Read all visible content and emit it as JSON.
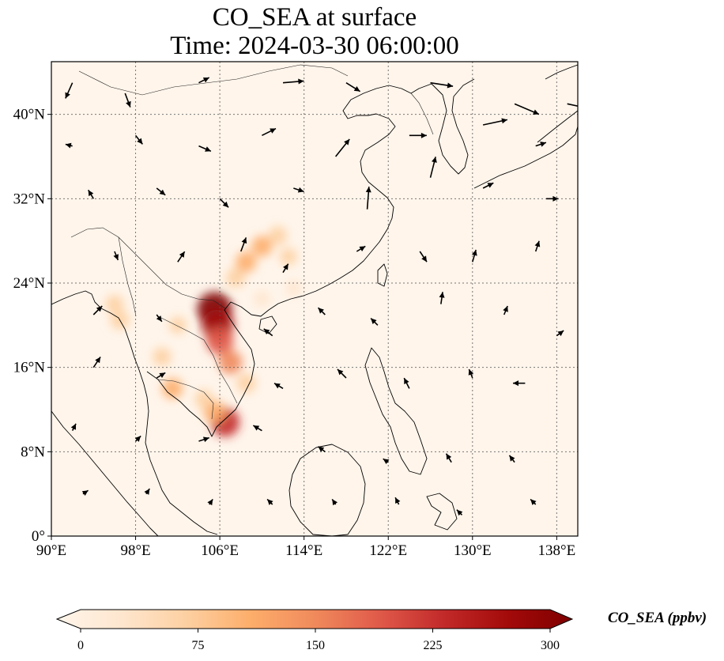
{
  "title": {
    "line1": "CO_SEA at surface",
    "line2": "Time: 2024-03-30 06:00:00"
  },
  "map": {
    "extent": {
      "lon": [
        90,
        140
      ],
      "lat": [
        0,
        45
      ]
    },
    "x_ticks": [
      {
        "lon": 90,
        "label": "90°E"
      },
      {
        "lon": 98,
        "label": "98°E"
      },
      {
        "lon": 106,
        "label": "106°E"
      },
      {
        "lon": 114,
        "label": "114°E"
      },
      {
        "lon": 122,
        "label": "122°E"
      },
      {
        "lon": 130,
        "label": "130°E"
      },
      {
        "lon": 138,
        "label": "138°E"
      }
    ],
    "y_ticks": [
      {
        "lat": 0,
        "label": "0°"
      },
      {
        "lat": 8,
        "label": "8°N"
      },
      {
        "lat": 16,
        "label": "16°N"
      },
      {
        "lat": 24,
        "label": "24°N"
      },
      {
        "lat": 32,
        "label": "32°N"
      },
      {
        "lat": 40,
        "label": "40°N"
      }
    ],
    "background_color": "#fff5eb",
    "hotspots": [
      {
        "lon": 105.5,
        "lat": 21.5,
        "value": 300
      },
      {
        "lon": 105.8,
        "lat": 20.0,
        "value": 260
      },
      {
        "lon": 106.0,
        "lat": 18.5,
        "value": 200
      },
      {
        "lon": 107.0,
        "lat": 16.5,
        "value": 150
      },
      {
        "lon": 108.5,
        "lat": 14.5,
        "value": 90
      },
      {
        "lon": 106.5,
        "lat": 10.8,
        "value": 220
      },
      {
        "lon": 105.5,
        "lat": 11.8,
        "value": 130
      },
      {
        "lon": 104.5,
        "lat": 13.0,
        "value": 80
      },
      {
        "lon": 101.5,
        "lat": 14.0,
        "value": 110
      },
      {
        "lon": 100.5,
        "lat": 17.0,
        "value": 80
      },
      {
        "lon": 96.5,
        "lat": 20.5,
        "value": 85
      },
      {
        "lon": 96.0,
        "lat": 22.0,
        "value": 75
      },
      {
        "lon": 107.5,
        "lat": 24.5,
        "value": 90
      },
      {
        "lon": 108.5,
        "lat": 26.0,
        "value": 110
      },
      {
        "lon": 110.0,
        "lat": 27.5,
        "value": 110
      },
      {
        "lon": 111.5,
        "lat": 28.5,
        "value": 80
      },
      {
        "lon": 112.5,
        "lat": 26.5,
        "value": 60
      },
      {
        "lon": 110.0,
        "lat": 22.5,
        "value": 55
      },
      {
        "lon": 113.0,
        "lat": 23.5,
        "value": 50
      },
      {
        "lon": 102.0,
        "lat": 20.0,
        "value": 60
      }
    ],
    "wind_vectors": [
      {
        "lon": 92,
        "lat": 43,
        "u": -0.4,
        "v": -0.9
      },
      {
        "lon": 97,
        "lat": 42,
        "u": 0.3,
        "v": -0.8
      },
      {
        "lon": 104,
        "lat": 43,
        "u": 0.6,
        "v": 0.3
      },
      {
        "lon": 112,
        "lat": 43,
        "u": 1.2,
        "v": 0.1
      },
      {
        "lon": 118,
        "lat": 43,
        "u": 0.8,
        "v": -0.5
      },
      {
        "lon": 126,
        "lat": 43,
        "u": 1.3,
        "v": -0.2
      },
      {
        "lon": 134,
        "lat": 41,
        "u": 1.4,
        "v": -0.6
      },
      {
        "lon": 139,
        "lat": 41,
        "u": 1.4,
        "v": -0.3
      },
      {
        "lon": 92,
        "lat": 37,
        "u": -0.4,
        "v": 0.1
      },
      {
        "lon": 98,
        "lat": 38,
        "u": 0.4,
        "v": -0.5
      },
      {
        "lon": 104,
        "lat": 37,
        "u": 0.7,
        "v": -0.3
      },
      {
        "lon": 110,
        "lat": 38,
        "u": 0.8,
        "v": 0.4
      },
      {
        "lon": 117,
        "lat": 36,
        "u": 0.8,
        "v": 1.0
      },
      {
        "lon": 124,
        "lat": 38,
        "u": 1.0,
        "v": 0.0
      },
      {
        "lon": 131,
        "lat": 39,
        "u": 1.4,
        "v": 0.3
      },
      {
        "lon": 136,
        "lat": 37,
        "u": 0.6,
        "v": 0.2
      },
      {
        "lon": 94,
        "lat": 32,
        "u": -0.3,
        "v": 0.5
      },
      {
        "lon": 100,
        "lat": 33,
        "u": 0.5,
        "v": -0.4
      },
      {
        "lon": 106,
        "lat": 32,
        "u": 0.5,
        "v": -0.5
      },
      {
        "lon": 113,
        "lat": 33,
        "u": 0.6,
        "v": -0.2
      },
      {
        "lon": 120,
        "lat": 31,
        "u": 0.1,
        "v": 1.3
      },
      {
        "lon": 126,
        "lat": 34,
        "u": 0.3,
        "v": 1.2
      },
      {
        "lon": 131,
        "lat": 33,
        "u": 0.6,
        "v": 0.3
      },
      {
        "lon": 137,
        "lat": 32,
        "u": 0.7,
        "v": 0.0
      },
      {
        "lon": 96,
        "lat": 27,
        "u": 0.2,
        "v": -0.5
      },
      {
        "lon": 102,
        "lat": 26,
        "u": 0.4,
        "v": 0.6
      },
      {
        "lon": 108,
        "lat": 27,
        "u": 0.3,
        "v": 0.8
      },
      {
        "lon": 112,
        "lat": 25,
        "u": 0.3,
        "v": 0.5
      },
      {
        "lon": 119,
        "lat": 27,
        "u": 0.5,
        "v": 0.3
      },
      {
        "lon": 125,
        "lat": 27,
        "u": 0.4,
        "v": -0.6
      },
      {
        "lon": 130,
        "lat": 26,
        "u": 0.2,
        "v": 0.7
      },
      {
        "lon": 136,
        "lat": 27,
        "u": 0.2,
        "v": 0.6
      },
      {
        "lon": 94,
        "lat": 21,
        "u": 0.5,
        "v": 0.5
      },
      {
        "lon": 100,
        "lat": 21,
        "u": 0.3,
        "v": -0.4
      },
      {
        "lon": 111,
        "lat": 19,
        "u": -0.5,
        "v": 0.4
      },
      {
        "lon": 116,
        "lat": 21,
        "u": -0.4,
        "v": 0.4
      },
      {
        "lon": 121,
        "lat": 20,
        "u": -0.4,
        "v": 0.4
      },
      {
        "lon": 127,
        "lat": 22,
        "u": 0.1,
        "v": 0.7
      },
      {
        "lon": 133,
        "lat": 21,
        "u": 0.2,
        "v": 0.5
      },
      {
        "lon": 138,
        "lat": 19,
        "u": 0.4,
        "v": 0.3
      },
      {
        "lon": 94,
        "lat": 16,
        "u": 0.4,
        "v": 0.6
      },
      {
        "lon": 100,
        "lat": 15,
        "u": 0.5,
        "v": 0.3
      },
      {
        "lon": 112,
        "lat": 14,
        "u": -0.5,
        "v": 0.3
      },
      {
        "lon": 118,
        "lat": 15,
        "u": -0.5,
        "v": 0.5
      },
      {
        "lon": 124,
        "lat": 14,
        "u": -0.3,
        "v": 0.6
      },
      {
        "lon": 130,
        "lat": 15,
        "u": -0.2,
        "v": 0.5
      },
      {
        "lon": 135,
        "lat": 14.5,
        "u": -0.7,
        "v": 0.0
      },
      {
        "lon": 92,
        "lat": 10,
        "u": 0.2,
        "v": 0.4
      },
      {
        "lon": 98,
        "lat": 9,
        "u": 0.3,
        "v": 0.3
      },
      {
        "lon": 104,
        "lat": 9,
        "u": 0.6,
        "v": 0.2
      },
      {
        "lon": 110,
        "lat": 10,
        "u": -0.5,
        "v": 0.3
      },
      {
        "lon": 116,
        "lat": 8,
        "u": -0.4,
        "v": 0.3
      },
      {
        "lon": 122,
        "lat": 7,
        "u": -0.3,
        "v": 0.2
      },
      {
        "lon": 128,
        "lat": 7,
        "u": -0.3,
        "v": 0.5
      },
      {
        "lon": 134,
        "lat": 7,
        "u": -0.3,
        "v": 0.4
      },
      {
        "lon": 93,
        "lat": 4,
        "u": 0.3,
        "v": 0.2
      },
      {
        "lon": 99,
        "lat": 4,
        "u": 0.2,
        "v": 0.3
      },
      {
        "lon": 105,
        "lat": 3,
        "u": 0.2,
        "v": 0.3
      },
      {
        "lon": 111,
        "lat": 3,
        "u": -0.3,
        "v": 0.3
      },
      {
        "lon": 117,
        "lat": 3,
        "u": -0.2,
        "v": 0.3
      },
      {
        "lon": 123,
        "lat": 3,
        "u": -0.2,
        "v": 0.4
      },
      {
        "lon": 129,
        "lat": 2,
        "u": -0.3,
        "v": 0.3
      },
      {
        "lon": 136,
        "lat": 3,
        "u": -0.3,
        "v": 0.3
      }
    ]
  },
  "colorbar": {
    "label": "CO_SEA (ppbv)",
    "min": 0,
    "max": 300,
    "ticks": [
      {
        "value": 0,
        "label": "0"
      },
      {
        "value": 75,
        "label": "75"
      },
      {
        "value": 150,
        "label": "150"
      },
      {
        "value": 225,
        "label": "225"
      },
      {
        "value": 300,
        "label": "300"
      }
    ],
    "colors": [
      "#fff5eb",
      "#fee6ce",
      "#fdd0a2",
      "#fdae6b",
      "#f08a5c",
      "#e05a4a",
      "#c22a2a",
      "#a30a0a",
      "#7f0000"
    ]
  }
}
